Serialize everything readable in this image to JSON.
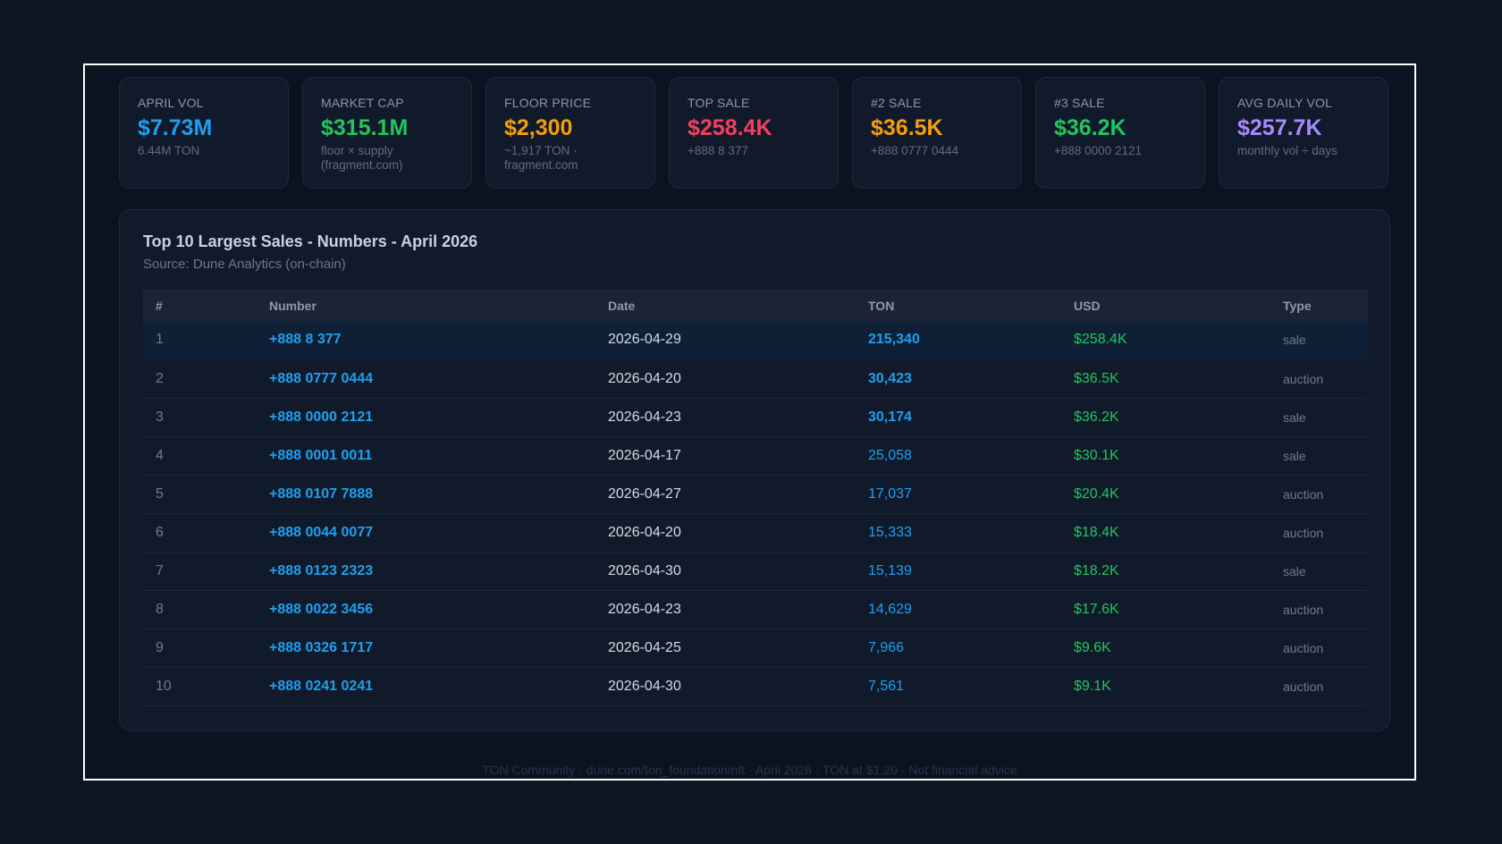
{
  "stats": [
    {
      "label": "APRIL VOL",
      "value": "$7.73M",
      "sub": "6.44M TON",
      "color": "#1e9ff2"
    },
    {
      "label": "MARKET CAP",
      "value": "$315.1M",
      "sub": "floor × supply (fragment.com)",
      "color": "#22c55e"
    },
    {
      "label": "FLOOR PRICE",
      "value": "$2,300",
      "sub": "~1,917 TON · fragment.com",
      "color": "#f59e0b"
    },
    {
      "label": "TOP SALE",
      "value": "$258.4K",
      "sub": "+888 8 377",
      "color": "#f43f5e"
    },
    {
      "label": "#2 SALE",
      "value": "$36.5K",
      "sub": "+888 0777 0444",
      "color": "#f59e0b"
    },
    {
      "label": "#3 SALE",
      "value": "$36.2K",
      "sub": "+888 0000 2121",
      "color": "#22c55e"
    },
    {
      "label": "AVG DAILY VOL",
      "value": "$257.7K",
      "sub": "monthly vol ÷ days",
      "color": "#a78bfa"
    }
  ],
  "panel": {
    "title": "Top 10 Largest Sales - Numbers - April 2026",
    "source": "Source: Dune Analytics (on-chain)"
  },
  "table": {
    "headers": [
      "#",
      "Number",
      "Date",
      "TON",
      "USD",
      "Type"
    ],
    "rows": [
      {
        "idx": "1",
        "number": "+888 8 377",
        "date": "2026-04-29",
        "ton": "215,340",
        "usd": "$258.4K",
        "type": "sale"
      },
      {
        "idx": "2",
        "number": "+888 0777 0444",
        "date": "2026-04-20",
        "ton": "30,423",
        "usd": "$36.5K",
        "type": "auction"
      },
      {
        "idx": "3",
        "number": "+888 0000 2121",
        "date": "2026-04-23",
        "ton": "30,174",
        "usd": "$36.2K",
        "type": "sale"
      },
      {
        "idx": "4",
        "number": "+888 0001 0011",
        "date": "2026-04-17",
        "ton": "25,058",
        "usd": "$30.1K",
        "type": "sale"
      },
      {
        "idx": "5",
        "number": "+888 0107 7888",
        "date": "2026-04-27",
        "ton": "17,037",
        "usd": "$20.4K",
        "type": "auction"
      },
      {
        "idx": "6",
        "number": "+888 0044 0077",
        "date": "2026-04-20",
        "ton": "15,333",
        "usd": "$18.4K",
        "type": "auction"
      },
      {
        "idx": "7",
        "number": "+888 0123 2323",
        "date": "2026-04-30",
        "ton": "15,139",
        "usd": "$18.2K",
        "type": "sale"
      },
      {
        "idx": "8",
        "number": "+888 0022 3456",
        "date": "2026-04-23",
        "ton": "14,629",
        "usd": "$17.6K",
        "type": "auction"
      },
      {
        "idx": "9",
        "number": "+888 0326 1717",
        "date": "2026-04-25",
        "ton": "7,966",
        "usd": "$9.6K",
        "type": "auction"
      },
      {
        "idx": "10",
        "number": "+888 0241 0241",
        "date": "2026-04-30",
        "ton": "7,561",
        "usd": "$9.1K",
        "type": "auction"
      }
    ]
  },
  "footer": "TON Community · dune.com/ton_foundation/nft · April 2026 · TON at $1.20 · Not financial advice"
}
